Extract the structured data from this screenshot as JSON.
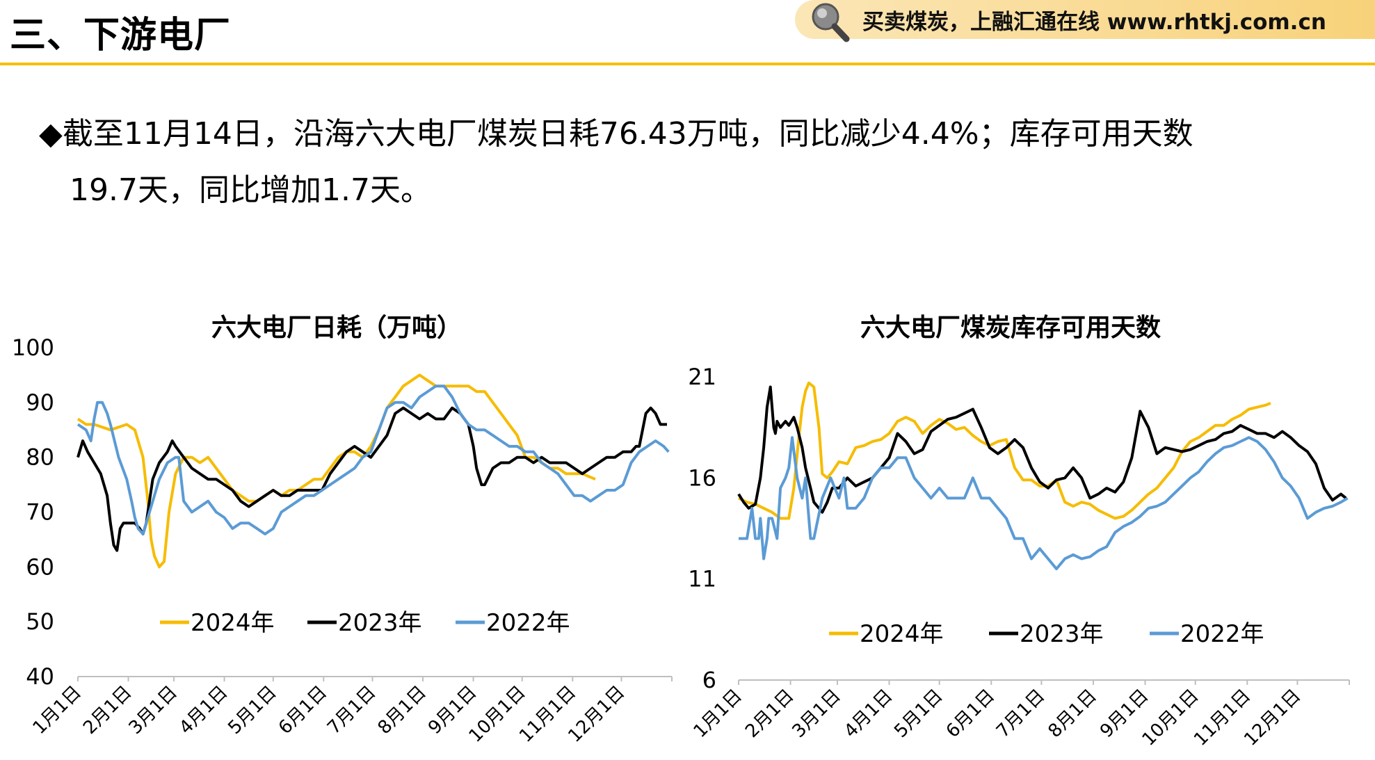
{
  "header": {
    "section_title": "三、下游电厂",
    "banner_text": "买卖煤炭，上融汇通在线 www.rhtkj.com.cn"
  },
  "summary": {
    "bullet": "◆",
    "line1": "截至11月14日，沿海六大电厂煤炭日耗76.43万吨，同比减少4.4%；库存可用天数",
    "line2": "19.7天，同比增加1.7天。"
  },
  "colors": {
    "accent": "#f6c000",
    "series_2024": "#f6bc00",
    "series_2023": "#000000",
    "series_2022": "#5b9bd5"
  },
  "chart_data": [
    {
      "type": "line",
      "title": "六大电厂日耗（万吨）",
      "ylim": [
        40,
        100
      ],
      "yticks": [
        40,
        50,
        60,
        70,
        80,
        90,
        100
      ],
      "categories": [
        "1月1日",
        "2月1日",
        "3月1日",
        "4月1日",
        "5月1日",
        "6月1日",
        "7月1日",
        "8月1日",
        "9月1日",
        "10月1日",
        "11月1日",
        "12月1日"
      ],
      "xlim": [
        0,
        365
      ],
      "legend": "bottom-inside",
      "grid": false,
      "series": [
        {
          "name": "2024年",
          "color": "#f6bc00",
          "x": [
            0,
            5,
            10,
            20,
            30,
            35,
            40,
            43,
            45,
            47,
            50,
            53,
            56,
            60,
            65,
            70,
            75,
            80,
            85,
            90,
            95,
            100,
            105,
            110,
            115,
            120,
            125,
            130,
            135,
            140,
            145,
            150,
            155,
            160,
            165,
            170,
            175,
            180,
            185,
            190,
            195,
            200,
            205,
            210,
            215,
            220,
            225,
            230,
            235,
            240,
            245,
            250,
            255,
            260,
            265,
            270,
            275,
            280,
            285,
            290,
            295,
            300,
            305,
            310,
            318
          ],
          "values": [
            87,
            86,
            86,
            85,
            86,
            85,
            80,
            72,
            65,
            62,
            60,
            61,
            70,
            77,
            80,
            80,
            79,
            80,
            78,
            76,
            74,
            73,
            72,
            72,
            73,
            74,
            73,
            74,
            74,
            75,
            76,
            76,
            78,
            80,
            81,
            81,
            80,
            82,
            85,
            89,
            91,
            93,
            94,
            95,
            94,
            93,
            93,
            93,
            93,
            93,
            92,
            92,
            90,
            88,
            86,
            84,
            80,
            80,
            79,
            78,
            78,
            77,
            77,
            77,
            76
          ]
        },
        {
          "name": "2023年",
          "color": "#000000",
          "x": [
            0,
            3,
            6,
            10,
            14,
            18,
            20,
            22,
            24,
            26,
            28,
            30,
            35,
            38,
            40,
            42,
            44,
            46,
            50,
            55,
            58,
            60,
            65,
            70,
            75,
            80,
            85,
            90,
            95,
            100,
            105,
            110,
            115,
            120,
            125,
            130,
            135,
            140,
            145,
            150,
            155,
            160,
            165,
            170,
            175,
            180,
            185,
            190,
            195,
            200,
            205,
            210,
            215,
            220,
            225,
            230,
            235,
            240,
            243,
            245,
            248,
            250,
            255,
            260,
            265,
            270,
            275,
            280,
            285,
            290,
            295,
            300,
            305,
            310,
            315,
            320,
            325,
            330,
            335,
            340,
            343,
            345,
            347,
            349,
            352,
            355,
            358,
            362
          ],
          "values": [
            80,
            83,
            81,
            79,
            77,
            73,
            68,
            64,
            63,
            67,
            68,
            68,
            68,
            67,
            66,
            68,
            72,
            76,
            79,
            81,
            83,
            82,
            80,
            78,
            77,
            76,
            76,
            75,
            74,
            72,
            71,
            72,
            73,
            74,
            73,
            73,
            74,
            74,
            74,
            74,
            77,
            79,
            81,
            82,
            81,
            80,
            82,
            84,
            88,
            89,
            88,
            87,
            88,
            87,
            87,
            89,
            88,
            86,
            82,
            78,
            75,
            75,
            78,
            79,
            79,
            80,
            80,
            79,
            80,
            79,
            79,
            79,
            78,
            77,
            78,
            79,
            80,
            80,
            81,
            81,
            82,
            82,
            85,
            88,
            89,
            88,
            86,
            86
          ]
        },
        {
          "name": "2022年",
          "color": "#5b9bd5",
          "x": [
            0,
            5,
            8,
            10,
            12,
            15,
            18,
            20,
            25,
            30,
            33,
            35,
            37,
            40,
            45,
            50,
            55,
            60,
            62,
            65,
            70,
            75,
            80,
            85,
            90,
            95,
            100,
            105,
            110,
            115,
            120,
            125,
            130,
            135,
            140,
            145,
            150,
            155,
            160,
            165,
            170,
            175,
            180,
            185,
            190,
            195,
            200,
            205,
            210,
            215,
            220,
            225,
            230,
            235,
            240,
            245,
            250,
            255,
            260,
            265,
            270,
            275,
            280,
            285,
            290,
            295,
            300,
            305,
            310,
            315,
            320,
            325,
            330,
            335,
            340,
            345,
            350,
            355,
            360,
            363
          ],
          "values": [
            86,
            85,
            83,
            87,
            90,
            90,
            88,
            86,
            80,
            76,
            72,
            69,
            67,
            66,
            71,
            76,
            79,
            80,
            80,
            72,
            70,
            71,
            72,
            70,
            69,
            67,
            68,
            68,
            67,
            66,
            67,
            70,
            71,
            72,
            73,
            73,
            74,
            75,
            76,
            77,
            78,
            80,
            81,
            85,
            89,
            90,
            90,
            89,
            91,
            92,
            93,
            93,
            91,
            88,
            86,
            85,
            85,
            84,
            83,
            82,
            82,
            81,
            81,
            79,
            78,
            77,
            75,
            73,
            73,
            72,
            73,
            74,
            74,
            75,
            79,
            81,
            82,
            83,
            82,
            81
          ]
        }
      ]
    },
    {
      "type": "line",
      "title": "六大电厂煤炭库存可用天数",
      "ylim": [
        6,
        21
      ],
      "yticks": [
        6,
        11,
        16,
        21
      ],
      "categories": [
        "1月1日",
        "2月1日",
        "3月1日",
        "4月1日",
        "5月1日",
        "6月1日",
        "7月1日",
        "8月1日",
        "9月1日",
        "10月1日",
        "11月1日",
        "12月1日"
      ],
      "xlim": [
        0,
        365
      ],
      "legend": "bottom-inside",
      "grid": false,
      "series": [
        {
          "name": "2024年",
          "color": "#f6bc00",
          "x": [
            0,
            5,
            10,
            15,
            20,
            25,
            30,
            33,
            36,
            38,
            40,
            42,
            45,
            48,
            50,
            53,
            56,
            60,
            65,
            70,
            75,
            80,
            85,
            90,
            95,
            100,
            105,
            110,
            115,
            120,
            125,
            130,
            135,
            140,
            145,
            150,
            155,
            160,
            165,
            170,
            175,
            180,
            185,
            190,
            195,
            200,
            205,
            210,
            215,
            220,
            225,
            230,
            235,
            240,
            245,
            250,
            255,
            260,
            265,
            270,
            275,
            280,
            285,
            290,
            295,
            300,
            305,
            310,
            315,
            318
          ],
          "values": [
            15.0,
            14.8,
            14.7,
            14.5,
            14.3,
            14.0,
            14.0,
            15.5,
            18.0,
            19.5,
            20.3,
            20.7,
            20.5,
            18.5,
            16.2,
            16.0,
            16.3,
            16.8,
            16.7,
            17.5,
            17.6,
            17.8,
            17.9,
            18.2,
            18.8,
            19.0,
            18.8,
            18.2,
            18.6,
            18.9,
            18.7,
            18.4,
            18.5,
            18.1,
            17.8,
            17.6,
            17.8,
            17.9,
            16.5,
            15.9,
            15.9,
            15.6,
            15.6,
            15.9,
            14.8,
            14.6,
            14.8,
            14.7,
            14.4,
            14.2,
            14.0,
            14.1,
            14.4,
            14.8,
            15.2,
            15.5,
            16.0,
            16.5,
            17.3,
            17.8,
            18.0,
            18.3,
            18.6,
            18.6,
            18.9,
            19.1,
            19.4,
            19.5,
            19.6,
            19.7
          ]
        },
        {
          "name": "2023年",
          "color": "#000000",
          "x": [
            0,
            3,
            6,
            10,
            13,
            15,
            17,
            19,
            21,
            22,
            23,
            25,
            28,
            30,
            33,
            35,
            38,
            40,
            43,
            45,
            48,
            50,
            53,
            56,
            60,
            63,
            65,
            70,
            75,
            80,
            85,
            90,
            95,
            100,
            105,
            110,
            115,
            120,
            125,
            130,
            135,
            140,
            145,
            150,
            155,
            160,
            165,
            170,
            175,
            180,
            185,
            190,
            195,
            200,
            205,
            210,
            215,
            220,
            225,
            230,
            235,
            240,
            245,
            250,
            255,
            260,
            265,
            270,
            275,
            280,
            285,
            290,
            295,
            300,
            305,
            310,
            315,
            320,
            325,
            330,
            335,
            340,
            345,
            350,
            355,
            360,
            363
          ],
          "values": [
            15.2,
            14.8,
            14.5,
            14.7,
            16.0,
            17.5,
            19.5,
            20.5,
            18.5,
            18.2,
            18.8,
            18.5,
            18.8,
            18.6,
            19.0,
            18.5,
            17.5,
            16.5,
            15.5,
            14.8,
            14.5,
            14.3,
            14.8,
            15.5,
            15.5,
            15.8,
            16.0,
            15.6,
            15.8,
            16.0,
            16.5,
            17.0,
            18.2,
            17.8,
            17.2,
            17.4,
            18.3,
            18.6,
            18.9,
            19.0,
            19.2,
            19.4,
            18.5,
            17.5,
            17.2,
            17.5,
            17.9,
            17.5,
            16.5,
            15.8,
            15.5,
            15.9,
            16.0,
            16.5,
            16.0,
            15.0,
            15.2,
            15.5,
            15.3,
            15.8,
            17.0,
            19.3,
            18.5,
            17.2,
            17.5,
            17.4,
            17.3,
            17.4,
            17.6,
            17.8,
            17.9,
            18.2,
            18.3,
            18.6,
            18.4,
            18.2,
            18.2,
            18.0,
            18.3,
            18.0,
            17.6,
            17.3,
            16.7,
            15.5,
            14.9,
            15.2,
            15.0
          ]
        },
        {
          "name": "2022年",
          "color": "#5b9bd5",
          "x": [
            0,
            5,
            8,
            10,
            12,
            13,
            15,
            17,
            18,
            20,
            23,
            25,
            28,
            30,
            32,
            35,
            38,
            40,
            43,
            45,
            50,
            55,
            60,
            63,
            65,
            70,
            75,
            80,
            85,
            90,
            95,
            100,
            105,
            110,
            115,
            120,
            125,
            130,
            135,
            140,
            145,
            150,
            155,
            160,
            165,
            170,
            175,
            180,
            185,
            190,
            195,
            200,
            205,
            210,
            215,
            220,
            225,
            230,
            235,
            240,
            245,
            250,
            255,
            260,
            265,
            270,
            275,
            280,
            285,
            290,
            295,
            300,
            305,
            310,
            315,
            320,
            325,
            330,
            335,
            340,
            345,
            350,
            355,
            360,
            364
          ],
          "values": [
            13.0,
            13.0,
            14.5,
            13.0,
            13.0,
            14.0,
            12.0,
            13.0,
            14.0,
            14.0,
            13.0,
            15.5,
            16.0,
            16.5,
            18.0,
            16.0,
            15.0,
            16.0,
            13.0,
            13.0,
            15.0,
            16.0,
            15.0,
            16.0,
            14.5,
            14.5,
            15.0,
            16.0,
            16.5,
            16.5,
            17.0,
            17.0,
            16.0,
            15.5,
            15.0,
            15.5,
            15.0,
            15.0,
            15.0,
            16.0,
            15.0,
            15.0,
            14.5,
            14.0,
            13.0,
            13.0,
            12.0,
            12.5,
            12.0,
            11.5,
            12.0,
            12.2,
            12.0,
            12.1,
            12.4,
            12.6,
            13.3,
            13.6,
            13.8,
            14.1,
            14.5,
            14.6,
            14.8,
            15.2,
            15.6,
            16.0,
            16.3,
            16.8,
            17.2,
            17.5,
            17.6,
            17.8,
            18.0,
            17.8,
            17.4,
            16.8,
            16.0,
            15.6,
            15.0,
            14.0,
            14.3,
            14.5,
            14.6,
            14.8,
            15.0
          ]
        }
      ]
    }
  ]
}
